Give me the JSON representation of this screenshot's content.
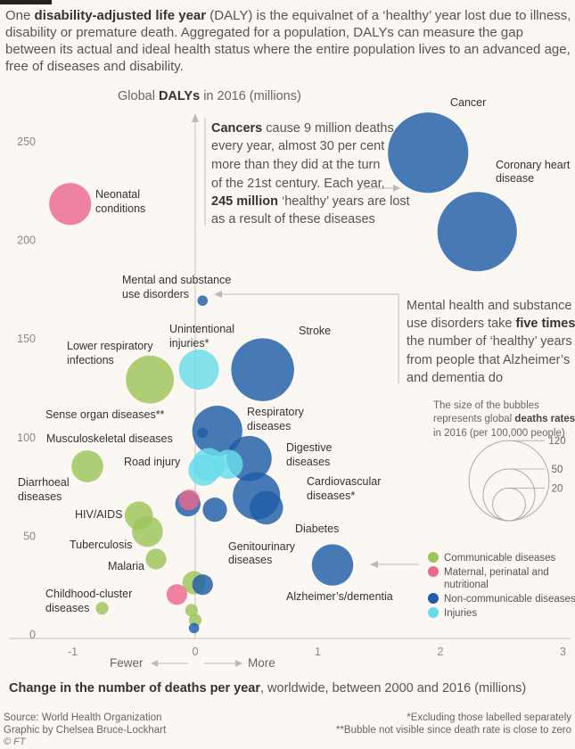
{
  "intro": {
    "p1": "One ",
    "bold1": "disability-adjusted life year",
    "p2": " (DALY) is the equivalnet of a ‘healthy’ year lost due to illness, disability or premature death. Aggregated for a population, DALYs can measure the gap between its actual and ideal health status where the entire population lives to an advanced age, free of diseases and disability."
  },
  "y_title": {
    "pre": "Global ",
    "bold": "DALYs",
    "post": " in 2016 (millions)"
  },
  "cancer_note": {
    "bold1": "Cancers",
    "l1": " cause 9 million deaths",
    "l2": "every year, almost 30 per cent",
    "l3": "more than they did at the turn",
    "l4": "of the 21st century. Each year,",
    "bold2": "245 million",
    "l5": " ‘healthy’ years are lost",
    "l6": "as a result of these diseases"
  },
  "mental_note": {
    "l1": "Mental health and substance",
    "l2a": "use disorders take ",
    "l2b": "five times",
    "l3": "the number of ‘healthy’ years",
    "l4": "from people that Alzheimer’s",
    "l5": "and dementia do"
  },
  "size_key": {
    "l1": "The size of the bubbles",
    "l2a": "represents global ",
    "l2b": "deaths rates",
    "l3": "in 2016 (per 100,000 people)",
    "values": [
      "120",
      "50",
      "20"
    ]
  },
  "direction": {
    "fewer": "Fewer",
    "more": "More"
  },
  "x_caption": {
    "bold": "Change in the number of deaths per year",
    "rest": ", worldwide, between 2000 and 2016 (millions)"
  },
  "source": {
    "l1": "Source: World Health Organization",
    "l2": "Graphic by Chelsea Bruce-Lockhart"
  },
  "notes": {
    "l1": "*Excluding those labelled separately",
    "l2": "**Bubble not visible since death rate is close to zero"
  },
  "credit": "© FT",
  "colors": {
    "communicable": "#9cc55a",
    "maternal": "#e9698f",
    "noncommunicable": "#1f5da6",
    "injuries": "#68dcea"
  },
  "chart_data": {
    "type": "scatter",
    "xlim": [
      -1.3,
      3.1
    ],
    "ylim": [
      -5,
      265
    ],
    "x_ticks": [
      "-1",
      "0",
      "1",
      "2",
      "3"
    ],
    "y_ticks": [
      "0",
      "50",
      "100",
      "150",
      "200",
      "250"
    ],
    "grid": false,
    "legend_position": "bottom-right",
    "legend": [
      {
        "name": "Communicable diseases",
        "key": "communicable"
      },
      {
        "name": "Maternal, perinatal and nutritional",
        "key": "maternal"
      },
      {
        "name": "Non-communicable diseases",
        "key": "noncommunicable"
      },
      {
        "name": "Injuries",
        "key": "injuries"
      }
    ],
    "points": [
      {
        "label": "Cancer",
        "x": 1.9,
        "y": 244,
        "rate": 121,
        "group": "noncommunicable"
      },
      {
        "label": "Coronary heart disease",
        "x": 2.3,
        "y": 204,
        "rate": 118,
        "group": "noncommunicable"
      },
      {
        "label": "Neonatal conditions",
        "x": -1.02,
        "y": 218,
        "rate": 33,
        "group": "maternal"
      },
      {
        "label": "Mental and substance use disorders",
        "x": 0.06,
        "y": 169,
        "rate": 2,
        "group": "noncommunicable"
      },
      {
        "label": "Stroke",
        "x": 0.55,
        "y": 134,
        "rate": 74,
        "group": "noncommunicable"
      },
      {
        "label": "Unintentional injuries*",
        "x": 0.03,
        "y": 134,
        "rate": 30,
        "group": "injuries"
      },
      {
        "label": "Lower respiratory infections",
        "x": -0.37,
        "y": 129,
        "rate": 43,
        "group": "communicable"
      },
      {
        "label": "Respiratory diseases",
        "x": 0.18,
        "y": 103,
        "rate": 47,
        "group": "noncommunicable"
      },
      {
        "label": "Musculoskeletal diseases",
        "x": 0.06,
        "y": 102,
        "rate": 2,
        "group": "noncommunicable"
      },
      {
        "label": "Digestive diseases",
        "x": 0.44,
        "y": 89,
        "rate": 38,
        "group": "noncommunicable"
      },
      {
        "label": "Road injury",
        "x": 0.07,
        "y": 83,
        "rate": 18,
        "group": "injuries"
      },
      {
        "label": "Cardiovascular diseases*",
        "x": 0.5,
        "y": 70,
        "rate": 42,
        "group": "noncommunicable"
      },
      {
        "label": "Diarrhoeal diseases",
        "x": -0.88,
        "y": 85,
        "rate": 19,
        "group": "communicable"
      },
      {
        "label": "Diabetes",
        "x": 0.58,
        "y": 64,
        "rate": 21,
        "group": "noncommunicable"
      },
      {
        "label": "HIV/AIDS",
        "x": -0.46,
        "y": 60,
        "rate": 15,
        "group": "communicable"
      },
      {
        "label": "Tuberculosis",
        "x": -0.39,
        "y": 52,
        "rate": 18,
        "group": "communicable"
      },
      {
        "label": "Genitourinary diseases",
        "x": 0.16,
        "y": 63,
        "rate": 11,
        "group": "noncommunicable"
      },
      {
        "label": "Malaria",
        "x": -0.32,
        "y": 38,
        "rate": 8,
        "group": "communicable"
      },
      {
        "label": "Alzheimer’s/dementia",
        "x": 1.12,
        "y": 35,
        "rate": 32,
        "group": "noncommunicable"
      },
      {
        "label": "Childhood-cluster diseases",
        "x": -0.76,
        "y": 13,
        "rate": 3,
        "group": "communicable"
      }
    ],
    "unlabelled": [
      {
        "x": -0.06,
        "y": 66,
        "rate": 12,
        "group": "noncommunicable"
      },
      {
        "x": -0.05,
        "y": 68,
        "rate": 8,
        "group": "maternal"
      },
      {
        "x": 0.11,
        "y": 86,
        "rate": 20,
        "group": "injuries"
      },
      {
        "x": 0.27,
        "y": 86,
        "rate": 16,
        "group": "injuries"
      },
      {
        "x": -0.01,
        "y": 26,
        "rate": 10,
        "group": "communicable"
      },
      {
        "x": -0.15,
        "y": 20,
        "rate": 8,
        "group": "maternal"
      },
      {
        "x": 0.06,
        "y": 25,
        "rate": 8,
        "group": "noncommunicable"
      },
      {
        "x": -0.03,
        "y": 12,
        "rate": 3,
        "group": "communicable"
      },
      {
        "x": 0.0,
        "y": 7,
        "rate": 3,
        "group": "communicable"
      },
      {
        "x": -0.01,
        "y": 3,
        "rate": 2,
        "group": "noncommunicable"
      }
    ]
  }
}
